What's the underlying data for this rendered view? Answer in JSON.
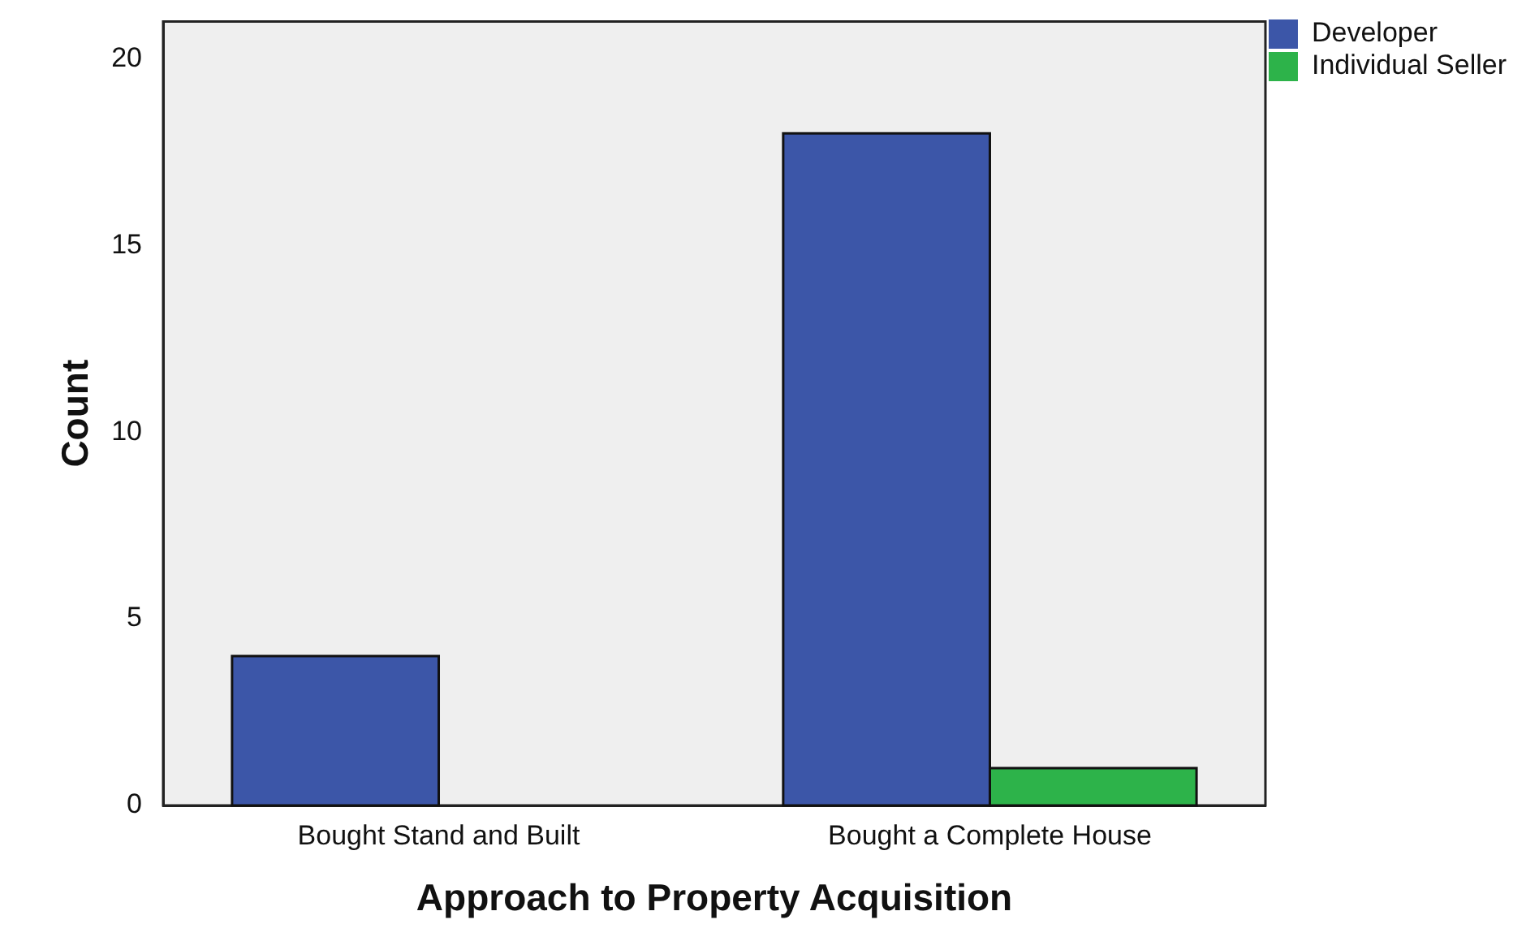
{
  "chart_data": {
    "type": "bar",
    "xlabel": "Approach to Property Acquisition",
    "ylabel": "Count",
    "categories": [
      "Bought Stand and Built",
      "Bought a Complete House"
    ],
    "series": [
      {
        "name": "Developer",
        "color": "#3c56a8",
        "values": [
          4,
          18
        ]
      },
      {
        "name": "Individual Seller",
        "color": "#2db34a",
        "values": [
          0,
          1
        ]
      }
    ],
    "ylim": [
      0,
      21
    ],
    "yticks": [
      0,
      5,
      10,
      15,
      20
    ],
    "grid": false,
    "legend": "top right"
  }
}
